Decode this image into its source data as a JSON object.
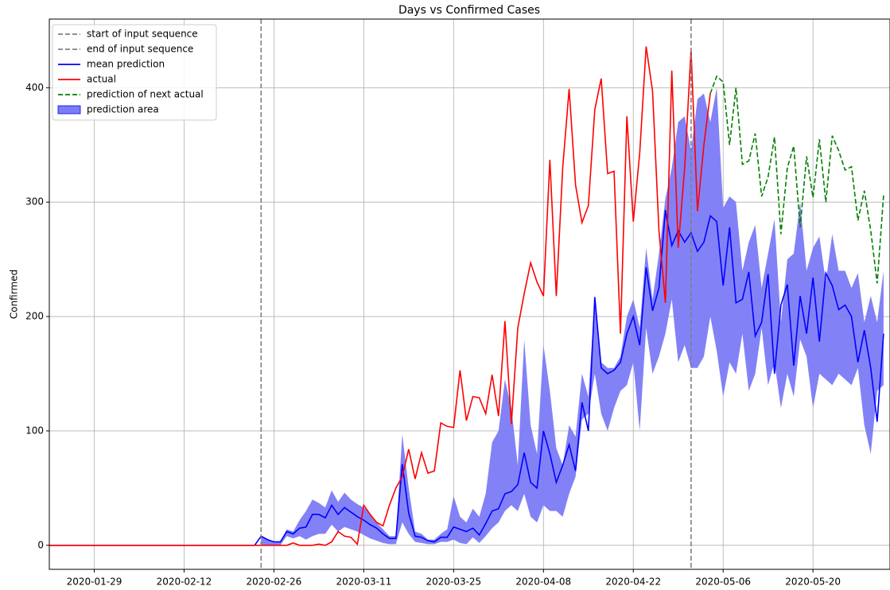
{
  "chart_data": {
    "type": "line",
    "title": "Days vs Confirmed Cases",
    "ylabel": "Confirmed",
    "x": [
      "2020-01-22",
      "2020-01-23",
      "2020-01-24",
      "2020-01-25",
      "2020-01-26",
      "2020-01-27",
      "2020-01-28",
      "2020-01-29",
      "2020-01-30",
      "2020-01-31",
      "2020-02-01",
      "2020-02-02",
      "2020-02-03",
      "2020-02-04",
      "2020-02-05",
      "2020-02-06",
      "2020-02-07",
      "2020-02-08",
      "2020-02-09",
      "2020-02-10",
      "2020-02-11",
      "2020-02-12",
      "2020-02-13",
      "2020-02-14",
      "2020-02-15",
      "2020-02-16",
      "2020-02-17",
      "2020-02-18",
      "2020-02-19",
      "2020-02-20",
      "2020-02-21",
      "2020-02-22",
      "2020-02-23",
      "2020-02-24",
      "2020-02-25",
      "2020-02-26",
      "2020-02-27",
      "2020-02-28",
      "2020-02-29",
      "2020-03-01",
      "2020-03-02",
      "2020-03-03",
      "2020-03-04",
      "2020-03-05",
      "2020-03-06",
      "2020-03-07",
      "2020-03-08",
      "2020-03-09",
      "2020-03-10",
      "2020-03-11",
      "2020-03-12",
      "2020-03-13",
      "2020-03-14",
      "2020-03-15",
      "2020-03-16",
      "2020-03-17",
      "2020-03-18",
      "2020-03-19",
      "2020-03-20",
      "2020-03-21",
      "2020-03-22",
      "2020-03-23",
      "2020-03-24",
      "2020-03-25",
      "2020-03-26",
      "2020-03-27",
      "2020-03-28",
      "2020-03-29",
      "2020-03-30",
      "2020-03-31",
      "2020-04-01",
      "2020-04-02",
      "2020-04-03",
      "2020-04-04",
      "2020-04-05",
      "2020-04-06",
      "2020-04-07",
      "2020-04-08",
      "2020-04-09",
      "2020-04-10",
      "2020-04-11",
      "2020-04-12",
      "2020-04-13",
      "2020-04-14",
      "2020-04-15",
      "2020-04-16",
      "2020-04-17",
      "2020-04-18",
      "2020-04-19",
      "2020-04-20",
      "2020-04-21",
      "2020-04-22",
      "2020-04-23",
      "2020-04-24",
      "2020-04-25",
      "2020-04-26",
      "2020-04-27",
      "2020-04-28",
      "2020-04-29",
      "2020-04-30",
      "2020-05-01",
      "2020-05-02",
      "2020-05-03",
      "2020-05-04",
      "2020-05-05",
      "2020-05-06",
      "2020-05-07",
      "2020-05-08",
      "2020-05-09",
      "2020-05-10",
      "2020-05-11",
      "2020-05-12",
      "2020-05-13",
      "2020-05-14",
      "2020-05-15",
      "2020-05-16",
      "2020-05-17",
      "2020-05-18",
      "2020-05-19",
      "2020-05-20",
      "2020-05-21",
      "2020-05-22",
      "2020-05-23",
      "2020-05-24",
      "2020-05-25",
      "2020-05-26",
      "2020-05-27",
      "2020-05-28",
      "2020-05-29",
      "2020-05-30",
      "2020-05-31"
    ],
    "vlines": [
      {
        "name": "start of input sequence",
        "x": "2020-02-24",
        "color": "#808080"
      },
      {
        "name": "end of input sequence",
        "x": "2020-05-01",
        "color": "#808080"
      }
    ],
    "series": [
      {
        "name": "mean prediction",
        "color": "#0000ff",
        "values": [
          0,
          0,
          0,
          0,
          0,
          0,
          0,
          0,
          0,
          0,
          0,
          0,
          0,
          0,
          0,
          0,
          0,
          0,
          0,
          0,
          0,
          0,
          0,
          0,
          0,
          0,
          0,
          0,
          0,
          0,
          0,
          0,
          0,
          8,
          5,
          3,
          3,
          12,
          10,
          15,
          16,
          27,
          27,
          24,
          35,
          27,
          33,
          29,
          25,
          22,
          18,
          15,
          10,
          6,
          6,
          71,
          28,
          8,
          7,
          4,
          3,
          7,
          7,
          16,
          14,
          12,
          15,
          9,
          19,
          30,
          32,
          45,
          47,
          53,
          81,
          55,
          50,
          100,
          80,
          55,
          70,
          88,
          65,
          125,
          100,
          217,
          155,
          150,
          153,
          160,
          185,
          200,
          175,
          243,
          205,
          225,
          293,
          262,
          275,
          265,
          273,
          257,
          265,
          288,
          283,
          227,
          278,
          212,
          215,
          239,
          183,
          195,
          237,
          150,
          210,
          228,
          157,
          218,
          185,
          234,
          178,
          238,
          227,
          206,
          210,
          200,
          160,
          188,
          155,
          108,
          185
        ]
      },
      {
        "name": "actual",
        "color": "#ff0000",
        "values": [
          0,
          0,
          0,
          0,
          0,
          0,
          0,
          0,
          0,
          0,
          0,
          0,
          0,
          0,
          0,
          0,
          0,
          0,
          0,
          0,
          0,
          0,
          0,
          0,
          0,
          0,
          0,
          0,
          0,
          0,
          0,
          0,
          0,
          0,
          0,
          0,
          0,
          0,
          2,
          0,
          0,
          0,
          1,
          0,
          3,
          12,
          8,
          7,
          1,
          35,
          27,
          20,
          17,
          35,
          50,
          60,
          84,
          58,
          81,
          63,
          65,
          107,
          104,
          103,
          153,
          109,
          130,
          129,
          115,
          149,
          113,
          196,
          106,
          190,
          220,
          247,
          230,
          218,
          337,
          218,
          330,
          399,
          315,
          282,
          297,
          381,
          408,
          325,
          327,
          185,
          375,
          283,
          343,
          436,
          397,
          275,
          212,
          415,
          260,
          330,
          433,
          292,
          350,
          395,
          null,
          null,
          null,
          null,
          null,
          null,
          null,
          null,
          null,
          null,
          null,
          null,
          null,
          null,
          null,
          null,
          null,
          null,
          null,
          null,
          null,
          null,
          null,
          null,
          null,
          null,
          null
        ]
      },
      {
        "name": "prediction of next actual",
        "color": "#008000",
        "dashed": true,
        "values": [
          null,
          null,
          null,
          null,
          null,
          null,
          null,
          null,
          null,
          null,
          null,
          null,
          null,
          null,
          null,
          null,
          null,
          null,
          null,
          null,
          null,
          null,
          null,
          null,
          null,
          null,
          null,
          null,
          null,
          null,
          null,
          null,
          null,
          null,
          null,
          null,
          null,
          null,
          null,
          null,
          null,
          null,
          null,
          null,
          null,
          null,
          null,
          null,
          null,
          null,
          null,
          null,
          null,
          null,
          null,
          null,
          null,
          null,
          null,
          null,
          null,
          null,
          null,
          null,
          null,
          null,
          null,
          null,
          null,
          null,
          null,
          null,
          null,
          null,
          null,
          null,
          null,
          null,
          null,
          null,
          null,
          null,
          null,
          null,
          null,
          null,
          null,
          null,
          null,
          null,
          null,
          null,
          null,
          null,
          null,
          null,
          null,
          null,
          null,
          null,
          null,
          null,
          null,
          395,
          410,
          405,
          350,
          400,
          333,
          336,
          360,
          305,
          322,
          357,
          272,
          330,
          349,
          278,
          340,
          304,
          355,
          300,
          358,
          345,
          328,
          331,
          284,
          310,
          275,
          229,
          306
        ]
      },
      {
        "name": "prediction area",
        "color": "#7b7bf5",
        "area": true,
        "lower": [
          null,
          null,
          null,
          null,
          null,
          null,
          null,
          null,
          null,
          null,
          null,
          null,
          null,
          null,
          null,
          null,
          null,
          null,
          null,
          null,
          null,
          null,
          null,
          null,
          null,
          null,
          null,
          null,
          null,
          null,
          null,
          null,
          null,
          0,
          0,
          0,
          0,
          8,
          6,
          8,
          5,
          8,
          10,
          10,
          18,
          12,
          16,
          14,
          12,
          9,
          6,
          4,
          2,
          1,
          1,
          20,
          10,
          3,
          2,
          1,
          1,
          3,
          3,
          5,
          2,
          1,
          7,
          2,
          8,
          15,
          20,
          30,
          35,
          30,
          45,
          25,
          20,
          35,
          30,
          30,
          25,
          45,
          60,
          110,
          115,
          150,
          115,
          100,
          120,
          135,
          140,
          160,
          100,
          190,
          150,
          165,
          185,
          215,
          160,
          175,
          155,
          155,
          165,
          200,
          170,
          130,
          160,
          150,
          185,
          135,
          150,
          190,
          140,
          160,
          120,
          150,
          130,
          180,
          165,
          120,
          150,
          145,
          140,
          150,
          145,
          140,
          155,
          105,
          80,
          135,
          140
        ],
        "upper": [
          null,
          null,
          null,
          null,
          null,
          null,
          null,
          null,
          null,
          null,
          null,
          null,
          null,
          null,
          null,
          null,
          null,
          null,
          null,
          null,
          null,
          null,
          null,
          null,
          null,
          null,
          null,
          null,
          null,
          null,
          null,
          null,
          null,
          8,
          5,
          3,
          3,
          14,
          12,
          22,
          30,
          40,
          37,
          33,
          48,
          38,
          46,
          40,
          36,
          33,
          28,
          20,
          14,
          8,
          8,
          97,
          50,
          12,
          10,
          5,
          5,
          10,
          14,
          43,
          25,
          20,
          32,
          25,
          45,
          90,
          100,
          145,
          120,
          70,
          180,
          105,
          80,
          175,
          135,
          85,
          70,
          105,
          95,
          150,
          130,
          217,
          160,
          155,
          155,
          165,
          200,
          215,
          190,
          260,
          215,
          255,
          303,
          330,
          370,
          375,
          345,
          390,
          395,
          370,
          400,
          295,
          305,
          300,
          240,
          265,
          280,
          225,
          255,
          285,
          195,
          250,
          255,
          300,
          240,
          260,
          270,
          230,
          272,
          240,
          240,
          225,
          238,
          195,
          218,
          195,
          240
        ]
      }
    ],
    "xlim": [
      "2020-01-22",
      "2020-06-01"
    ],
    "xticks": [
      "2020-01-29",
      "2020-02-12",
      "2020-02-26",
      "2020-03-11",
      "2020-03-25",
      "2020-04-08",
      "2020-04-22",
      "2020-05-06",
      "2020-05-20"
    ],
    "ylim": [
      -21,
      460
    ],
    "yticks": [
      0,
      100,
      200,
      300,
      400
    ],
    "grid": true,
    "legend": "upper left"
  }
}
